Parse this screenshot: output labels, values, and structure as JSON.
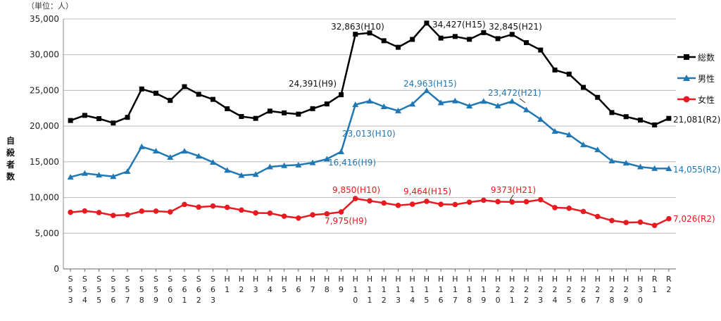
{
  "chart_data": {
    "type": "line",
    "unit_label": "（単位：人）",
    "ylabel": "自殺者数",
    "ylim": [
      0,
      35000
    ],
    "yticks": [
      "0",
      "5,000",
      "10,000",
      "15,000",
      "20,000",
      "25,000",
      "30,000",
      "35,000"
    ],
    "categories": [
      "S53",
      "S54",
      "S55",
      "S56",
      "S57",
      "S58",
      "S59",
      "S60",
      "S61",
      "S62",
      "S63",
      "H1",
      "H2",
      "H3",
      "H4",
      "H5",
      "H6",
      "H7",
      "H8",
      "H9",
      "H10",
      "H11",
      "H12",
      "H13",
      "H14",
      "H15",
      "H16",
      "H17",
      "H18",
      "H19",
      "H20",
      "H21",
      "H22",
      "H23",
      "H24",
      "H25",
      "H26",
      "H27",
      "H28",
      "H29",
      "H30",
      "R1",
      "R2"
    ],
    "series": [
      {
        "name": "総数",
        "color": "#000000",
        "marker": "square",
        "values": [
          20788,
          21503,
          21048,
          20434,
          21228,
          25202,
          24596,
          23599,
          25524,
          24460,
          23742,
          22436,
          21346,
          21084,
          22104,
          21851,
          21679,
          22445,
          23104,
          24391,
          32863,
          33048,
          31957,
          31042,
          32143,
          34427,
          32325,
          32552,
          32155,
          33093,
          32249,
          32845,
          31690,
          30651,
          27858,
          27283,
          25427,
          24025,
          21897,
          21321,
          20840,
          20169,
          21081
        ]
      },
      {
        "name": "男性",
        "color": "#1f77b4",
        "marker": "triangle",
        "values": [
          12859,
          13386,
          13155,
          12942,
          13654,
          17116,
          16508,
          15624,
          16497,
          15802,
          14934,
          13818,
          13102,
          13242,
          14296,
          14468,
          14560,
          14874,
          15393,
          16416,
          23013,
          23512,
          22727,
          22144,
          23080,
          24963,
          23272,
          23540,
          22813,
          23478,
          22831,
          23472,
          22283,
          20955,
          19273,
          18787,
          17386,
          16681,
          15121,
          14826,
          14290,
          14078,
          14055
        ]
      },
      {
        "name": "女性",
        "color": "#e8191f",
        "marker": "circle",
        "values": [
          7929,
          8117,
          7893,
          7492,
          7574,
          8086,
          8088,
          7975,
          9027,
          8658,
          8808,
          8618,
          8244,
          7842,
          7808,
          7383,
          7119,
          7571,
          7711,
          7975,
          9850,
          9536,
          9230,
          8898,
          9063,
          9464,
          9053,
          9012,
          9342,
          9615,
          9418,
          9373,
          9407,
          9696,
          8585,
          8496,
          8041,
          7344,
          6776,
          6495,
          6550,
          6091,
          7026
        ]
      }
    ],
    "annotations": {
      "total_h9": "24,391(H9)",
      "total_h10": "32,863(H10)",
      "total_h15": "34,427(H15)",
      "total_h21": "32,845(H21)",
      "total_r2": "21,081(R2)",
      "male_h9": "16,416(H9)",
      "male_h10": "23,013(H10)",
      "male_h15": "24,963(H15)",
      "male_h21": "23,472(H21)",
      "male_r2": "14,055(R2)",
      "female_h9": "7,975(H9)",
      "female_h10": "9,850(H10)",
      "female_h15": "9,464(H15)",
      "female_h21": "9373(H21)",
      "female_r2": "7,026(R2)"
    }
  }
}
